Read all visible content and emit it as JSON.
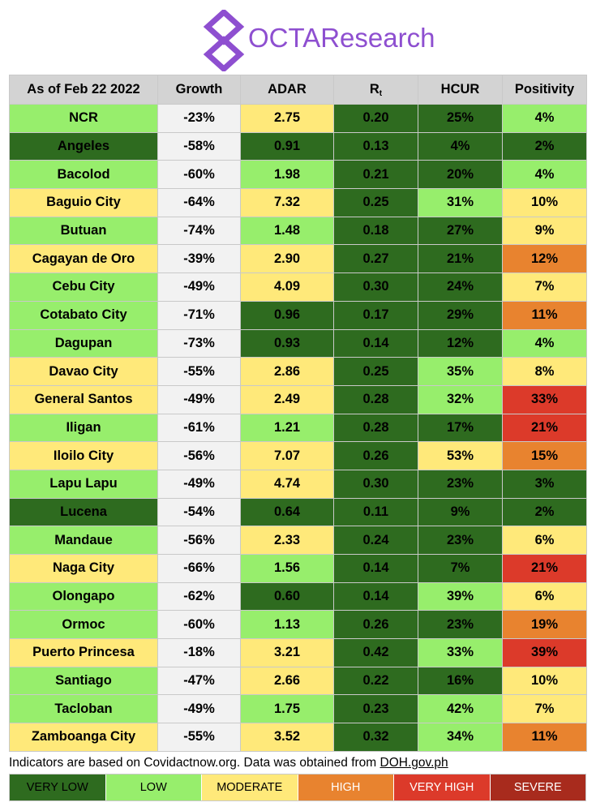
{
  "brand": {
    "name": "OCTAResearch",
    "color": "#8e4fd0"
  },
  "colors": {
    "very_low": "#2e6b1f",
    "low": "#97ee6c",
    "moderate": "#ffe97a",
    "high": "#e8832f",
    "very_high": "#dc3a2a",
    "severe": "#a82b1d",
    "neutral": "#f2f2f2",
    "header_bg": "#d3d3d3"
  },
  "table": {
    "headers": {
      "location": "As of Feb 22 2022",
      "growth": "Growth",
      "adar": "ADAR",
      "rt_main": "R",
      "rt_sub": "t",
      "hcur": "HCUR",
      "positivity": "Positivity"
    },
    "rows": [
      {
        "name": "NCR",
        "name_c": "low",
        "growth": "-23%",
        "growth_c": "neutral",
        "adar": "2.75",
        "adar_c": "moderate",
        "rt": "0.20",
        "rt_c": "very_low",
        "hcur": "25%",
        "hcur_c": "very_low",
        "pos": "4%",
        "pos_c": "low"
      },
      {
        "name": "Angeles",
        "name_c": "very_low",
        "growth": "-58%",
        "growth_c": "neutral",
        "adar": "0.91",
        "adar_c": "very_low",
        "rt": "0.13",
        "rt_c": "very_low",
        "hcur": "4%",
        "hcur_c": "very_low",
        "pos": "2%",
        "pos_c": "very_low"
      },
      {
        "name": "Bacolod",
        "name_c": "low",
        "growth": "-60%",
        "growth_c": "neutral",
        "adar": "1.98",
        "adar_c": "low",
        "rt": "0.21",
        "rt_c": "very_low",
        "hcur": "20%",
        "hcur_c": "very_low",
        "pos": "4%",
        "pos_c": "low"
      },
      {
        "name": "Baguio City",
        "name_c": "moderate",
        "growth": "-64%",
        "growth_c": "neutral",
        "adar": "7.32",
        "adar_c": "moderate",
        "rt": "0.25",
        "rt_c": "very_low",
        "hcur": "31%",
        "hcur_c": "low",
        "pos": "10%",
        "pos_c": "moderate"
      },
      {
        "name": "Butuan",
        "name_c": "low",
        "growth": "-74%",
        "growth_c": "neutral",
        "adar": "1.48",
        "adar_c": "low",
        "rt": "0.18",
        "rt_c": "very_low",
        "hcur": "27%",
        "hcur_c": "very_low",
        "pos": "9%",
        "pos_c": "moderate"
      },
      {
        "name": "Cagayan de Oro",
        "name_c": "moderate",
        "growth": "-39%",
        "growth_c": "neutral",
        "adar": "2.90",
        "adar_c": "moderate",
        "rt": "0.27",
        "rt_c": "very_low",
        "hcur": "21%",
        "hcur_c": "very_low",
        "pos": "12%",
        "pos_c": "high"
      },
      {
        "name": "Cebu City",
        "name_c": "low",
        "growth": "-49%",
        "growth_c": "neutral",
        "adar": "4.09",
        "adar_c": "moderate",
        "rt": "0.30",
        "rt_c": "very_low",
        "hcur": "24%",
        "hcur_c": "very_low",
        "pos": "7%",
        "pos_c": "moderate"
      },
      {
        "name": "Cotabato City",
        "name_c": "low",
        "growth": "-71%",
        "growth_c": "neutral",
        "adar": "0.96",
        "adar_c": "very_low",
        "rt": "0.17",
        "rt_c": "very_low",
        "hcur": "29%",
        "hcur_c": "very_low",
        "pos": "11%",
        "pos_c": "high"
      },
      {
        "name": "Dagupan",
        "name_c": "low",
        "growth": "-73%",
        "growth_c": "neutral",
        "adar": "0.93",
        "adar_c": "very_low",
        "rt": "0.14",
        "rt_c": "very_low",
        "hcur": "12%",
        "hcur_c": "very_low",
        "pos": "4%",
        "pos_c": "low"
      },
      {
        "name": "Davao City",
        "name_c": "moderate",
        "growth": "-55%",
        "growth_c": "neutral",
        "adar": "2.86",
        "adar_c": "moderate",
        "rt": "0.25",
        "rt_c": "very_low",
        "hcur": "35%",
        "hcur_c": "low",
        "pos": "8%",
        "pos_c": "moderate"
      },
      {
        "name": "General Santos",
        "name_c": "moderate",
        "growth": "-49%",
        "growth_c": "neutral",
        "adar": "2.49",
        "adar_c": "moderate",
        "rt": "0.28",
        "rt_c": "very_low",
        "hcur": "32%",
        "hcur_c": "low",
        "pos": "33%",
        "pos_c": "very_high"
      },
      {
        "name": "Iligan",
        "name_c": "low",
        "growth": "-61%",
        "growth_c": "neutral",
        "adar": "1.21",
        "adar_c": "low",
        "rt": "0.28",
        "rt_c": "very_low",
        "hcur": "17%",
        "hcur_c": "very_low",
        "pos": "21%",
        "pos_c": "very_high"
      },
      {
        "name": "Iloilo City",
        "name_c": "moderate",
        "growth": "-56%",
        "growth_c": "neutral",
        "adar": "7.07",
        "adar_c": "moderate",
        "rt": "0.26",
        "rt_c": "very_low",
        "hcur": "53%",
        "hcur_c": "moderate",
        "pos": "15%",
        "pos_c": "high"
      },
      {
        "name": "Lapu Lapu",
        "name_c": "low",
        "growth": "-49%",
        "growth_c": "neutral",
        "adar": "4.74",
        "adar_c": "moderate",
        "rt": "0.30",
        "rt_c": "very_low",
        "hcur": "23%",
        "hcur_c": "very_low",
        "pos": "3%",
        "pos_c": "very_low"
      },
      {
        "name": "Lucena",
        "name_c": "very_low",
        "growth": "-54%",
        "growth_c": "neutral",
        "adar": "0.64",
        "adar_c": "very_low",
        "rt": "0.11",
        "rt_c": "very_low",
        "hcur": "9%",
        "hcur_c": "very_low",
        "pos": "2%",
        "pos_c": "very_low"
      },
      {
        "name": "Mandaue",
        "name_c": "low",
        "growth": "-56%",
        "growth_c": "neutral",
        "adar": "2.33",
        "adar_c": "moderate",
        "rt": "0.24",
        "rt_c": "very_low",
        "hcur": "23%",
        "hcur_c": "very_low",
        "pos": "6%",
        "pos_c": "moderate"
      },
      {
        "name": "Naga City",
        "name_c": "moderate",
        "growth": "-66%",
        "growth_c": "neutral",
        "adar": "1.56",
        "adar_c": "low",
        "rt": "0.14",
        "rt_c": "very_low",
        "hcur": "7%",
        "hcur_c": "very_low",
        "pos": "21%",
        "pos_c": "very_high"
      },
      {
        "name": "Olongapo",
        "name_c": "low",
        "growth": "-62%",
        "growth_c": "neutral",
        "adar": "0.60",
        "adar_c": "very_low",
        "rt": "0.14",
        "rt_c": "very_low",
        "hcur": "39%",
        "hcur_c": "low",
        "pos": "6%",
        "pos_c": "moderate"
      },
      {
        "name": "Ormoc",
        "name_c": "low",
        "growth": "-60%",
        "growth_c": "neutral",
        "adar": "1.13",
        "adar_c": "low",
        "rt": "0.26",
        "rt_c": "very_low",
        "hcur": "23%",
        "hcur_c": "very_low",
        "pos": "19%",
        "pos_c": "high"
      },
      {
        "name": "Puerto Princesa",
        "name_c": "moderate",
        "growth": "-18%",
        "growth_c": "neutral",
        "adar": "3.21",
        "adar_c": "moderate",
        "rt": "0.42",
        "rt_c": "very_low",
        "hcur": "33%",
        "hcur_c": "low",
        "pos": "39%",
        "pos_c": "very_high"
      },
      {
        "name": "Santiago",
        "name_c": "low",
        "growth": "-47%",
        "growth_c": "neutral",
        "adar": "2.66",
        "adar_c": "moderate",
        "rt": "0.22",
        "rt_c": "very_low",
        "hcur": "16%",
        "hcur_c": "very_low",
        "pos": "10%",
        "pos_c": "moderate"
      },
      {
        "name": "Tacloban",
        "name_c": "low",
        "growth": "-49%",
        "growth_c": "neutral",
        "adar": "1.75",
        "adar_c": "low",
        "rt": "0.23",
        "rt_c": "very_low",
        "hcur": "42%",
        "hcur_c": "low",
        "pos": "7%",
        "pos_c": "moderate"
      },
      {
        "name": "Zamboanga City",
        "name_c": "moderate",
        "growth": "-55%",
        "growth_c": "neutral",
        "adar": "3.52",
        "adar_c": "moderate",
        "rt": "0.32",
        "rt_c": "very_low",
        "hcur": "34%",
        "hcur_c": "low",
        "pos": "11%",
        "pos_c": "high"
      }
    ]
  },
  "footnote": {
    "text": "Indicators are based on Covidactnow.org. Data was obtained from ",
    "link": "DOH.gov.ph"
  },
  "legend": [
    {
      "label": "VERY LOW",
      "key": "very_low"
    },
    {
      "label": "LOW",
      "key": "low"
    },
    {
      "label": "MODERATE",
      "key": "moderate"
    },
    {
      "label": "HIGH",
      "key": "high"
    },
    {
      "label": "VERY HIGH",
      "key": "very_high"
    },
    {
      "label": "SEVERE",
      "key": "severe"
    }
  ]
}
